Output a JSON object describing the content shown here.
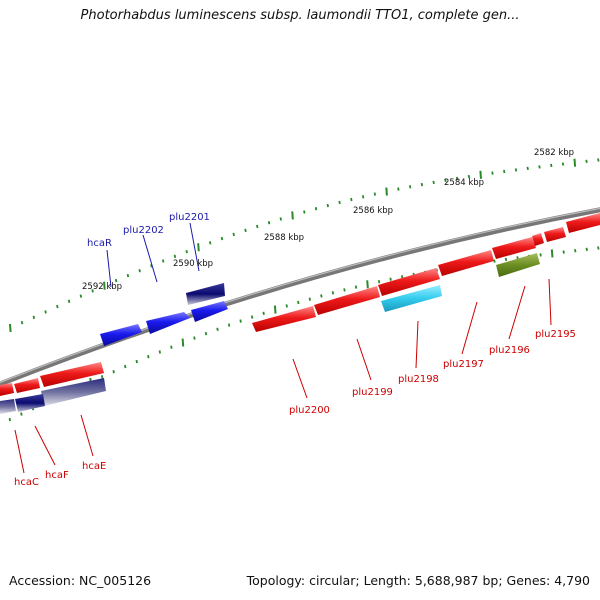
{
  "title": "Photorhabdus luminescens subsp. laumondii TTO1, complete gen...",
  "footer": {
    "accession": "Accession: NC_005126",
    "summary": "Topology: circular; Length: 5,688,987 bp; Genes: 4,790"
  },
  "ticks": [
    "2582 kbp",
    "2584 kbp",
    "2586 kbp",
    "2588 kbp",
    "2590 kbp",
    "2592 kbp"
  ],
  "forward_genes": [
    {
      "label": "hcaR",
      "color": "#1a1aee"
    },
    {
      "label": "plu2202",
      "color": "#1a1aee"
    },
    {
      "label": "plu2201",
      "color": "#0a0a70"
    }
  ],
  "reverse_genes": [
    {
      "label": "plu2195",
      "color": "#6b8e23"
    },
    {
      "label": "plu2196",
      "color": "#ee1a1a"
    },
    {
      "label": "plu2197",
      "color": "#ee1a1a"
    },
    {
      "label": "plu2198",
      "color": "#33ccee"
    },
    {
      "label": "plu2199",
      "color": "#ee1a1a"
    },
    {
      "label": "plu2200",
      "color": "#ee1a1a"
    },
    {
      "label": "hcaE",
      "color": "#ee1a1a"
    },
    {
      "label": "hcaF",
      "color": "#0a0a70"
    },
    {
      "label": "hcaC",
      "color": "#0a0a70"
    }
  ],
  "colors": {
    "backbone": "#7a7a7a",
    "tick": "#2a8a2a",
    "forward_label": "#1a1aaa",
    "reverse_label": "#cc0000"
  }
}
